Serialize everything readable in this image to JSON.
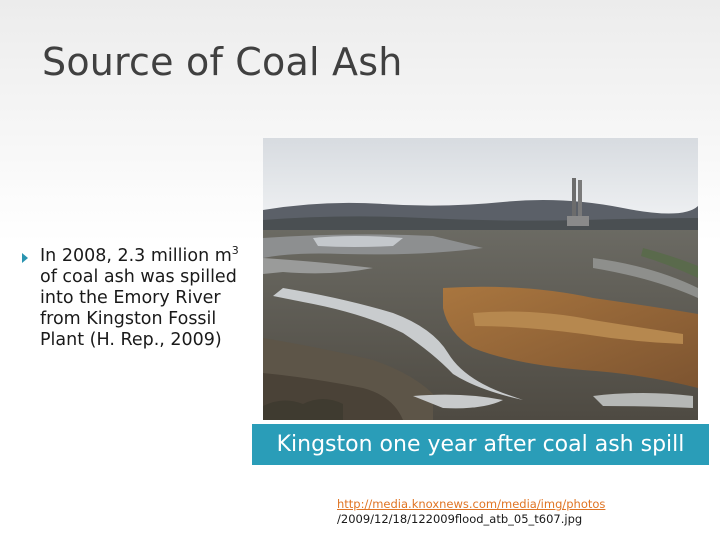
{
  "slide": {
    "title": "Source of Coal Ash",
    "bullet": {
      "part1": "In 2008, 2.3 million m",
      "superscript": "3",
      "part2": "  of coal ash was spilled into the Emory River from Kingston Fossil Plant (H. Rep., 2009)"
    },
    "caption": "Kingston one year after coal ash spill",
    "source_link": "http://media.knoxnews.com/media/img/photos",
    "source_path": "/2009/12/18/122009flood_atb_05_t607.jpg"
  },
  "colors": {
    "accent": "#2a9db8",
    "link": "#e07524",
    "title": "#404040"
  }
}
